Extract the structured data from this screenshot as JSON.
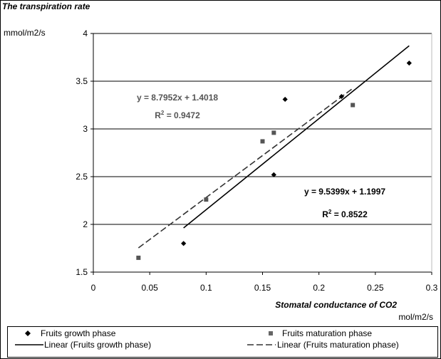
{
  "chart_data": {
    "type": "scatter",
    "title": "The transpiration rate",
    "ylabel": "mmol/m2/s",
    "xlabel": "Stomatal conductance of CO2",
    "xunit": "mol/m2/s",
    "xlim": [
      0,
      0.3
    ],
    "ylim": [
      1.5,
      4
    ],
    "x_ticks": [
      "0",
      "0.05",
      "0.1",
      "0.15",
      "0.2",
      "0.25",
      "0.3"
    ],
    "y_ticks": [
      "1.5",
      "2",
      "2.5",
      "3",
      "3.5",
      "4"
    ],
    "grid": "horizontal",
    "series": [
      {
        "name": "Fruits growth phase",
        "marker": "diamond",
        "color": "#000000",
        "points": [
          [
            0.08,
            1.8
          ],
          [
            0.16,
            2.52
          ],
          [
            0.17,
            3.31
          ],
          [
            0.22,
            3.34
          ],
          [
            0.28,
            3.69
          ]
        ]
      },
      {
        "name": "Fruits maturation phase",
        "marker": "square",
        "color": "#555555",
        "points": [
          [
            0.04,
            1.65
          ],
          [
            0.1,
            2.26
          ],
          [
            0.15,
            2.87
          ],
          [
            0.16,
            2.96
          ],
          [
            0.23,
            3.25
          ]
        ]
      }
    ],
    "trendlines": [
      {
        "name": "Linear (Fruits growth phase)",
        "style": "solid",
        "slope": 9.5399,
        "intercept": 1.1997,
        "x_range": [
          0.08,
          0.28
        ],
        "equation": "y = 9.5399x + 1.1997",
        "r2_label": "R",
        "r2_value": " = 0.8522"
      },
      {
        "name": "Linear (Fruits maturation phase)",
        "style": "dashed",
        "slope": 8.7952,
        "intercept": 1.4018,
        "x_range": [
          0.04,
          0.23
        ],
        "equation": "y = 8.7952x + 1.4018",
        "r2_label": "R",
        "r2_value": " = 0.9472"
      }
    ],
    "legend": {
      "placement": "bottom",
      "items": [
        "Fruits growth phase",
        "Fruits maturation phase",
        "Linear (Fruits growth phase)",
        "Linear (Fruits maturation phase)"
      ]
    }
  }
}
